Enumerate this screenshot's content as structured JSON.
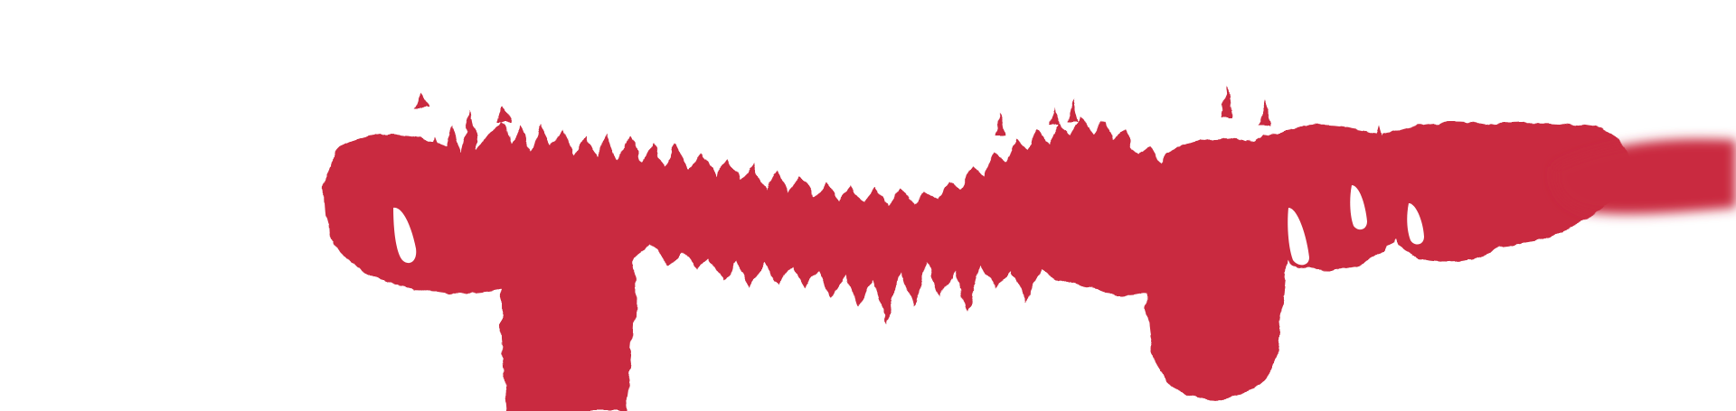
{
  "artwork": {
    "subject": "forest-silhouette-brush-stroke",
    "colors": {
      "background": "#ffffff",
      "ink": "#c92a40"
    }
  }
}
